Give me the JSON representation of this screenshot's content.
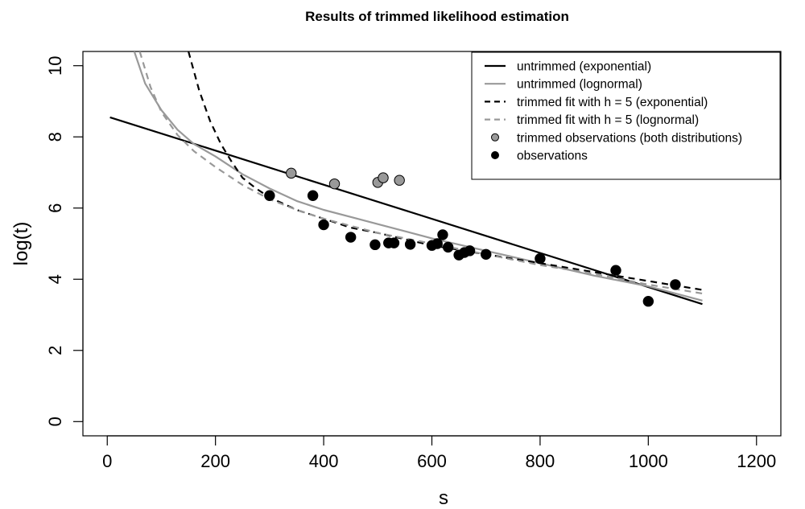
{
  "chart_data": {
    "type": "scatter",
    "title": "Results of trimmed likelihood estimation",
    "xlabel": "s",
    "ylabel": "log(t)",
    "xlim": [
      -45,
      1245
    ],
    "ylim": [
      -0.4,
      10.4
    ],
    "x_ticks": [
      0,
      200,
      400,
      600,
      800,
      1000,
      1200
    ],
    "y_ticks": [
      0,
      2,
      4,
      6,
      8,
      10
    ],
    "grid": false,
    "legend_position": "top-right",
    "colors": {
      "black": "#000000",
      "gray": "#999999"
    },
    "legend": [
      {
        "label": "untrimmed (exponential)",
        "kind": "line",
        "color": "#000000",
        "dash": "solid"
      },
      {
        "label": "untrimmed (lognormal)",
        "kind": "line",
        "color": "#999999",
        "dash": "solid"
      },
      {
        "label": "trimmed fit with h = 5 (exponential)",
        "kind": "line",
        "color": "#000000",
        "dash": "dashed"
      },
      {
        "label": "trimmed fit with h = 5 (lognormal)",
        "kind": "line",
        "color": "#999999",
        "dash": "dashed"
      },
      {
        "label": "trimmed observations (both distributions)",
        "kind": "point",
        "color": "#999999"
      },
      {
        "label": "observations",
        "kind": "point",
        "color": "#000000"
      }
    ],
    "series": [
      {
        "name": "untrimmed (exponential)",
        "kind": "line",
        "color": "#000000",
        "dash": "solid",
        "x": [
          5,
          1100
        ],
        "y": [
          8.55,
          3.3
        ]
      },
      {
        "name": "untrimmed (lognormal)",
        "kind": "line",
        "color": "#999999",
        "dash": "solid",
        "x": [
          50,
          70,
          100,
          130,
          160,
          200,
          250,
          300,
          350,
          400,
          450,
          500,
          600,
          700,
          800,
          900,
          1000,
          1100
        ],
        "y": [
          10.4,
          9.5,
          8.75,
          8.2,
          7.8,
          7.45,
          6.95,
          6.55,
          6.2,
          5.95,
          5.75,
          5.55,
          5.15,
          4.8,
          4.45,
          4.1,
          3.8,
          3.4
        ]
      },
      {
        "name": "trimmed fit with h = 5 (exponential)",
        "kind": "line",
        "color": "#000000",
        "dash": "dashed",
        "x": [
          150,
          170,
          190,
          210,
          230,
          250,
          275,
          300,
          350,
          400,
          450,
          500,
          600,
          700,
          800,
          900,
          1000,
          1100
        ],
        "y": [
          10.4,
          9.3,
          8.45,
          7.8,
          7.3,
          6.85,
          6.55,
          6.3,
          5.95,
          5.7,
          5.45,
          5.3,
          4.95,
          4.7,
          4.45,
          4.2,
          3.95,
          3.7
        ]
      },
      {
        "name": "trimmed fit with h = 5 (lognormal)",
        "kind": "line",
        "color": "#999999",
        "dash": "dashed",
        "x": [
          60,
          80,
          100,
          130,
          160,
          200,
          250,
          300,
          350,
          400,
          450,
          500,
          600,
          700,
          800,
          900,
          1000,
          1100
        ],
        "y": [
          10.4,
          9.4,
          8.7,
          8.05,
          7.6,
          7.15,
          6.65,
          6.25,
          5.95,
          5.7,
          5.5,
          5.3,
          5.0,
          4.7,
          4.4,
          4.15,
          3.85,
          3.6
        ]
      },
      {
        "name": "trimmed observations (both distributions)",
        "kind": "point",
        "color": "#999999",
        "x": [
          340,
          420,
          500,
          510,
          540
        ],
        "y": [
          6.98,
          6.68,
          6.72,
          6.85,
          6.78
        ]
      },
      {
        "name": "observations",
        "kind": "point",
        "color": "#000000",
        "x": [
          300,
          380,
          400,
          450,
          495,
          520,
          530,
          560,
          600,
          610,
          620,
          630,
          650,
          660,
          670,
          700,
          800,
          940,
          1000,
          1050
        ],
        "y": [
          6.35,
          6.35,
          5.53,
          5.18,
          4.97,
          5.02,
          5.02,
          4.98,
          4.95,
          5.0,
          5.25,
          4.9,
          4.68,
          4.75,
          4.8,
          4.7,
          4.58,
          4.25,
          3.38,
          3.85
        ]
      }
    ]
  }
}
